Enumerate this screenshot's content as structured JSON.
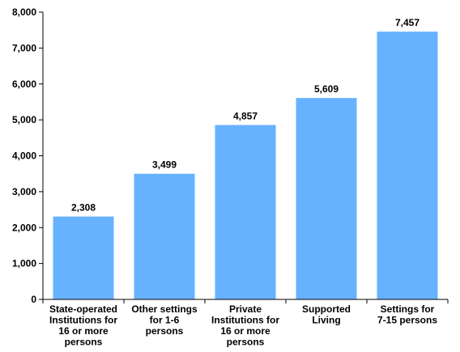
{
  "chart_data": {
    "type": "bar",
    "categories": [
      [
        "State-operated",
        "Institutions for",
        "16 or more",
        "persons"
      ],
      [
        "Other settings",
        "for 1-6",
        "persons"
      ],
      [
        "Private",
        "Institutions for",
        "16 or more",
        "persons"
      ],
      [
        "Supported",
        "Living"
      ],
      [
        "Settings for",
        "7-15 persons"
      ]
    ],
    "values": [
      2308,
      3499,
      4857,
      5609,
      7457
    ],
    "value_labels": [
      "2,308",
      "3,499",
      "4,857",
      "5,609",
      "7,457"
    ],
    "yticks": [
      "0",
      "1,000",
      "2,000",
      "3,000",
      "4,000",
      "5,000",
      "6,000",
      "7,000",
      "8,000"
    ],
    "ylim": [
      0,
      8000
    ],
    "grid": false,
    "legend": "none",
    "bar_color": "#66b2ff",
    "axis_color": "#000000"
  }
}
